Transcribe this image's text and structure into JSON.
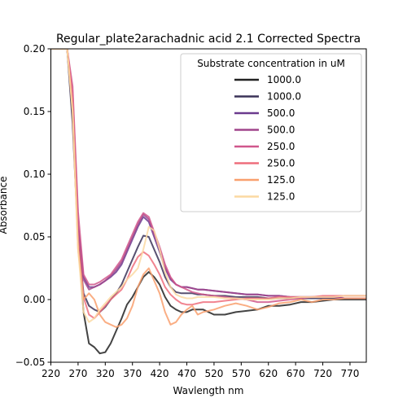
{
  "chart_data": {
    "type": "line",
    "title": "Regular_plate2arachadnic acid 2.1 Corrected Spectra",
    "xlabel": "Wavlength nm",
    "ylabel": "Absorbance",
    "xlim": [
      220,
      800
    ],
    "ylim": [
      -0.05,
      0.2
    ],
    "xticks": [
      220,
      270,
      320,
      370,
      420,
      470,
      520,
      570,
      620,
      670,
      720,
      770
    ],
    "yticks": [
      -0.05,
      0.0,
      0.05,
      0.1,
      0.15,
      0.2
    ],
    "ytick_labels": [
      "−0.05",
      "0.00",
      "0.05",
      "0.10",
      "0.15",
      "0.20"
    ],
    "legend": {
      "title": "Substrate concentration in uM",
      "placement": "upper right"
    },
    "grid": false,
    "x": [
      220,
      230,
      240,
      250,
      260,
      270,
      280,
      290,
      300,
      310,
      320,
      330,
      340,
      350,
      360,
      370,
      380,
      390,
      400,
      410,
      420,
      430,
      440,
      450,
      460,
      470,
      480,
      490,
      500,
      520,
      540,
      560,
      580,
      600,
      620,
      640,
      660,
      680,
      700,
      720,
      740,
      760,
      780,
      800
    ],
    "series": [
      {
        "name": "1000.0",
        "color": "#222222",
        "values": [
          0.2,
          0.2,
          0.2,
          0.2,
          0.15,
          0.05,
          -0.01,
          -0.035,
          -0.038,
          -0.043,
          -0.042,
          -0.035,
          -0.025,
          -0.015,
          -0.004,
          0.002,
          0.01,
          0.018,
          0.022,
          0.018,
          0.012,
          0.002,
          -0.005,
          -0.008,
          -0.01,
          -0.01,
          -0.008,
          -0.008,
          -0.008,
          -0.012,
          -0.012,
          -0.01,
          -0.009,
          -0.008,
          -0.005,
          -0.005,
          -0.004,
          -0.002,
          -0.002,
          -0.001,
          0.0,
          0.0,
          0.0,
          0.0
        ]
      },
      {
        "name": "1000.0",
        "color": "#3b3358",
        "values": [
          0.2,
          0.2,
          0.2,
          0.2,
          0.14,
          0.05,
          0.005,
          -0.005,
          -0.008,
          -0.01,
          -0.006,
          0.0,
          0.005,
          0.012,
          0.022,
          0.032,
          0.042,
          0.051,
          0.05,
          0.04,
          0.03,
          0.018,
          0.01,
          0.006,
          0.005,
          0.005,
          0.005,
          0.004,
          0.004,
          0.003,
          0.003,
          0.002,
          0.002,
          0.002,
          0.001,
          0.001,
          0.001,
          0.001,
          0.001,
          0.001,
          0.001,
          0.001,
          0.001,
          0.001
        ]
      },
      {
        "name": "500.0",
        "color": "#6b3a8e",
        "values": [
          0.2,
          0.2,
          0.2,
          0.2,
          0.16,
          0.06,
          0.018,
          0.01,
          0.01,
          0.012,
          0.015,
          0.018,
          0.022,
          0.028,
          0.038,
          0.048,
          0.058,
          0.066,
          0.062,
          0.05,
          0.038,
          0.025,
          0.016,
          0.012,
          0.01,
          0.01,
          0.009,
          0.008,
          0.008,
          0.007,
          0.006,
          0.005,
          0.004,
          0.004,
          0.003,
          0.003,
          0.002,
          0.002,
          0.002,
          0.002,
          0.002,
          0.001,
          0.001,
          0.001
        ]
      },
      {
        "name": "500.0",
        "color": "#a1458c",
        "values": [
          0.2,
          0.2,
          0.2,
          0.2,
          0.16,
          0.06,
          0.016,
          0.008,
          0.01,
          0.012,
          0.015,
          0.019,
          0.024,
          0.03,
          0.04,
          0.05,
          0.06,
          0.068,
          0.064,
          0.052,
          0.04,
          0.026,
          0.017,
          0.012,
          0.01,
          0.01,
          0.009,
          0.008,
          0.008,
          0.007,
          0.006,
          0.005,
          0.004,
          0.004,
          0.003,
          0.003,
          0.002,
          0.002,
          0.002,
          0.002,
          0.002,
          0.001,
          0.001,
          0.001
        ]
      },
      {
        "name": "250.0",
        "color": "#d0578c",
        "values": [
          0.2,
          0.2,
          0.2,
          0.2,
          0.17,
          0.07,
          0.02,
          0.012,
          0.012,
          0.014,
          0.017,
          0.02,
          0.026,
          0.032,
          0.042,
          0.052,
          0.062,
          0.069,
          0.066,
          0.054,
          0.042,
          0.028,
          0.018,
          0.012,
          0.01,
          0.008,
          0.006,
          0.005,
          0.004,
          0.003,
          0.002,
          0.001,
          0.0,
          -0.002,
          -0.002,
          -0.001,
          0.0,
          0.001,
          0.002,
          0.002,
          0.002,
          0.003,
          0.003,
          0.003
        ]
      },
      {
        "name": "250.0",
        "color": "#ee6e7c",
        "values": [
          0.2,
          0.2,
          0.2,
          0.2,
          0.16,
          0.05,
          0.002,
          -0.012,
          -0.015,
          -0.01,
          -0.005,
          0.0,
          0.004,
          0.008,
          0.016,
          0.026,
          0.034,
          0.038,
          0.035,
          0.028,
          0.02,
          0.01,
          0.004,
          0.0,
          -0.003,
          -0.004,
          -0.004,
          -0.003,
          -0.002,
          -0.002,
          -0.001,
          0.0,
          0.001,
          0.001,
          0.001,
          0.002,
          0.002,
          0.002,
          0.002,
          0.003,
          0.003,
          0.003,
          0.003,
          0.003
        ]
      },
      {
        "name": "125.0",
        "color": "#f9a06e",
        "values": [
          0.2,
          0.2,
          0.2,
          0.2,
          0.15,
          0.04,
          0.0,
          0.005,
          0.0,
          -0.012,
          -0.018,
          -0.02,
          -0.022,
          -0.02,
          -0.015,
          -0.005,
          0.01,
          0.02,
          0.025,
          0.015,
          0.005,
          -0.01,
          -0.02,
          -0.018,
          -0.012,
          -0.008,
          -0.005,
          -0.012,
          -0.01,
          -0.008,
          -0.005,
          -0.003,
          -0.005,
          -0.008,
          -0.006,
          -0.003,
          -0.002,
          0.0,
          -0.002,
          0.0,
          0.0,
          0.001,
          0.001,
          0.001
        ]
      },
      {
        "name": "125.0",
        "color": "#fbd9a2",
        "values": [
          0.2,
          0.2,
          0.2,
          0.2,
          0.15,
          0.04,
          -0.01,
          -0.018,
          -0.015,
          -0.008,
          -0.003,
          0.002,
          0.006,
          0.01,
          0.016,
          0.02,
          0.025,
          0.04,
          0.058,
          0.055,
          0.04,
          0.022,
          0.01,
          0.004,
          0.002,
          0.001,
          0.001,
          0.002,
          0.002,
          0.002,
          0.001,
          0.001,
          0.0,
          0.0,
          0.0,
          0.001,
          0.001,
          0.002,
          0.002,
          0.002,
          0.002,
          0.003,
          0.003,
          0.003
        ]
      }
    ]
  }
}
